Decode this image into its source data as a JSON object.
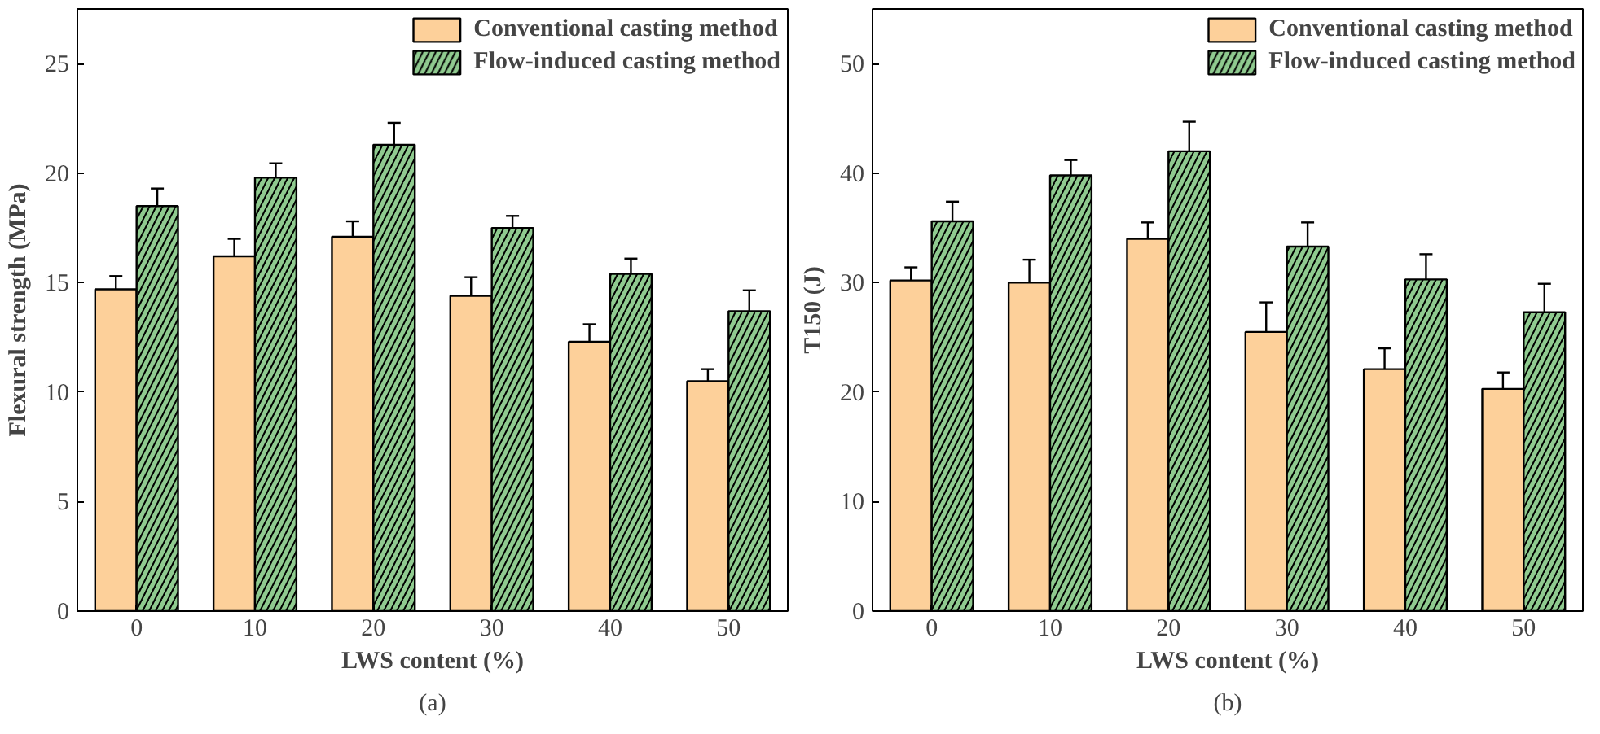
{
  "chart_data": [
    {
      "type": "bar",
      "xlabel": "LWS content (%)",
      "ylabel": "Flexural strength (MPa)",
      "categories": [
        "0",
        "10",
        "20",
        "30",
        "40",
        "50"
      ],
      "ylim": [
        0,
        27.5
      ],
      "yticks": [
        0,
        5,
        10,
        15,
        20,
        25
      ],
      "legend": "top right",
      "grid": false,
      "annotations": [
        "(a)"
      ],
      "series": [
        {
          "name": "Conventional casting method",
          "color": "#fdd09a",
          "values": [
            14.7,
            16.2,
            17.1,
            14.4,
            12.3,
            10.5
          ],
          "errors": [
            0.6,
            0.8,
            0.7,
            0.85,
            0.8,
            0.55
          ]
        },
        {
          "name": "Flow-induced casting method",
          "color": "#8fca8f",
          "values": [
            18.5,
            19.8,
            21.3,
            17.5,
            15.4,
            13.7
          ],
          "errors": [
            0.8,
            0.65,
            1.0,
            0.55,
            0.7,
            0.95
          ]
        }
      ]
    },
    {
      "type": "bar",
      "xlabel": "LWS content (%)",
      "ylabel": "T150 (J)",
      "categories": [
        "0",
        "10",
        "20",
        "30",
        "40",
        "50"
      ],
      "ylim": [
        0,
        55
      ],
      "yticks": [
        0,
        10,
        20,
        30,
        40,
        50
      ],
      "legend": "top right",
      "grid": false,
      "annotations": [
        "(b)"
      ],
      "series": [
        {
          "name": "Conventional casting method",
          "color": "#fdd09a",
          "values": [
            30.2,
            30.0,
            34.0,
            25.5,
            22.1,
            20.3
          ],
          "errors": [
            1.2,
            2.1,
            1.5,
            2.7,
            1.9,
            1.5
          ]
        },
        {
          "name": "Flow-induced casting method",
          "color": "#8fca8f",
          "values": [
            35.6,
            39.8,
            42.0,
            33.3,
            30.3,
            27.3
          ],
          "errors": [
            1.8,
            1.4,
            2.7,
            2.2,
            2.3,
            2.6
          ]
        }
      ]
    }
  ]
}
